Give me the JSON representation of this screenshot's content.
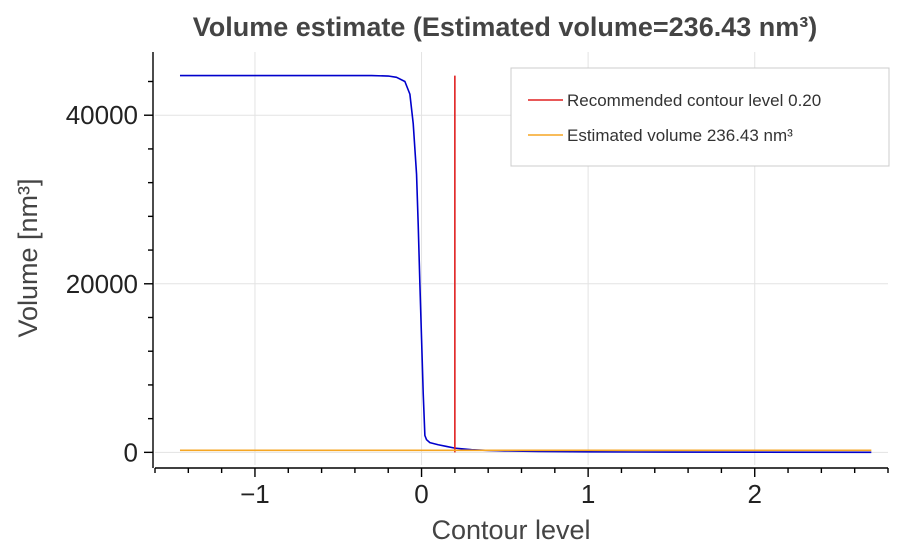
{
  "chart_data": {
    "type": "line",
    "title": "Volume estimate (Estimated volume=236.43 nm³)",
    "xlabel": "Contour level",
    "ylabel": "Volume [nm³]",
    "xlim": [
      -1.6,
      2.8
    ],
    "ylim": [
      -1500,
      47500
    ],
    "xticks": [
      -1,
      0,
      1,
      2
    ],
    "xtick_labels": [
      "−1",
      "0",
      "1",
      "2"
    ],
    "yticks": [
      0,
      20000,
      40000
    ],
    "ytick_labels": [
      "0",
      "20000",
      "40000"
    ],
    "x_minor_step": 0.2,
    "y_minor_step": 4000,
    "grid": true,
    "legend_position": "top-right",
    "colors": {
      "curve": "#0000cc",
      "recommended": "#e02020",
      "estimated": "#f5a623",
      "grid": "#e3e3e3",
      "text": "#444444"
    },
    "series": [
      {
        "role": "volume-curve",
        "x": [
          -1.45,
          -0.8,
          -0.3,
          -0.2,
          -0.15,
          -0.1,
          -0.07,
          -0.05,
          -0.03,
          -0.02,
          -0.01,
          0.0,
          0.01,
          0.02,
          0.03,
          0.05,
          0.1,
          0.15,
          0.2,
          0.3,
          0.4,
          0.5,
          0.7,
          1.0,
          1.5,
          2.0,
          2.7
        ],
        "y": [
          44700,
          44700,
          44700,
          44650,
          44500,
          44000,
          42500,
          39000,
          33000,
          27000,
          20000,
          13500,
          7000,
          2000,
          1500,
          1150,
          900,
          700,
          500,
          320,
          230,
          170,
          110,
          60,
          30,
          15,
          5
        ]
      },
      {
        "role": "recommended-line",
        "name": "Recommended contour level 0.20",
        "x": [
          0.2,
          0.2
        ],
        "y": [
          0,
          44700
        ]
      },
      {
        "role": "estimated-line",
        "name": "Estimated volume 236.43 nm³",
        "x": [
          -1.45,
          2.7
        ],
        "y": [
          236.43,
          236.43
        ]
      }
    ]
  }
}
